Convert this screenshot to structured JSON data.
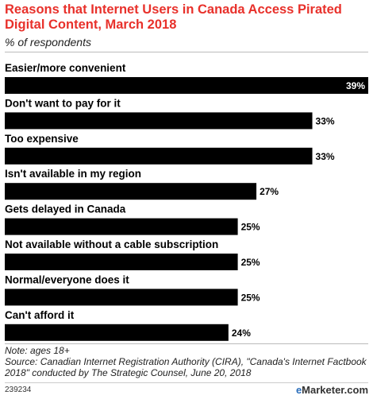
{
  "title": "Reasons that Internet Users in Canada Access Pirated Digital Content, March 2018",
  "subtitle": "% of respondents",
  "chart_data": {
    "type": "bar",
    "orientation": "horizontal",
    "title": "Reasons that Internet Users in Canada Access Pirated Digital Content, March 2018",
    "subtitle": "% of respondents",
    "categories": [
      "Easier/more convenient",
      "Don't want to pay for it",
      "Too expensive",
      "Isn't available in my region",
      "Gets delayed in Canada",
      "Not available without a cable subscription",
      "Normal/everyone does it",
      "Can't afford it"
    ],
    "values": [
      39,
      33,
      33,
      27,
      25,
      25,
      25,
      24
    ],
    "value_labels": [
      "39%",
      "33%",
      "33%",
      "27%",
      "25%",
      "25%",
      "25%",
      "24%"
    ],
    "xlim": [
      0,
      39
    ],
    "grid": false,
    "bar_color": "#000000"
  },
  "note": "Note: ages 18+",
  "source": "Source: Canadian Internet Registration Authority (CIRA), \"Canada's Internet Factbook 2018\" conducted by The Strategic Counsel, June 20, 2018",
  "chart_id": "239234",
  "brand": {
    "prefix": "e",
    "name": "Marketer",
    "suffix": ".com"
  },
  "colors": {
    "title": "#e8312b",
    "bar": "#000000",
    "brand_accent": "#2a6ebb"
  }
}
